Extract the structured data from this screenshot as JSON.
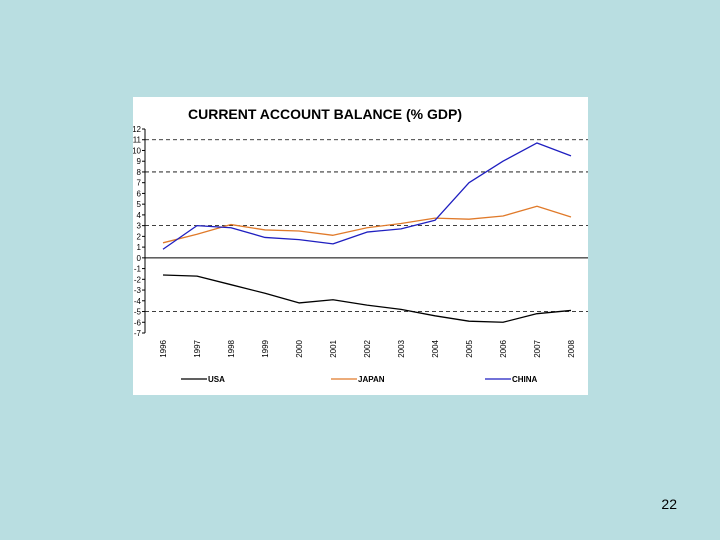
{
  "page": {
    "number": "22"
  },
  "chart_data": {
    "type": "line",
    "title": "CURRENT ACCOUNT BALANCE (% GDP)",
    "xlabel": "",
    "ylabel": "",
    "x": [
      "1996",
      "1997",
      "1998",
      "1999",
      "2000",
      "2001",
      "2002",
      "2003",
      "2004",
      "2005",
      "2006",
      "2007",
      "2008"
    ],
    "ylim": [
      -7,
      12
    ],
    "yticks": [
      "12",
      "11",
      "10",
      "9",
      "8",
      "7",
      "6",
      "5",
      "4",
      "3",
      "2",
      "1",
      "0",
      "-1",
      "-2",
      "-3",
      "-4",
      "-5",
      "-6",
      "-7"
    ],
    "ytick_values": [
      12,
      11,
      10,
      9,
      8,
      7,
      6,
      5,
      4,
      3,
      2,
      1,
      0,
      -1,
      -2,
      -3,
      -4,
      -5,
      -6,
      -7
    ],
    "reference_lines": [
      11,
      8,
      3,
      -5
    ],
    "grid": false,
    "legend_position": "bottom",
    "series": [
      {
        "name": "USA",
        "color": "#000000",
        "values": [
          -1.6,
          -1.7,
          -2.5,
          -3.3,
          -4.2,
          -3.9,
          -4.4,
          -4.8,
          -5.4,
          -5.9,
          -6.0,
          -5.2,
          -4.9
        ]
      },
      {
        "name": "JAPAN",
        "color": "#e07a2a",
        "values": [
          1.4,
          2.2,
          3.1,
          2.6,
          2.5,
          2.1,
          2.8,
          3.2,
          3.7,
          3.6,
          3.9,
          4.8,
          3.8
        ]
      },
      {
        "name": "CHINA",
        "color": "#1f1fc0",
        "values": [
          0.8,
          3.0,
          2.8,
          1.9,
          1.7,
          1.3,
          2.4,
          2.7,
          3.5,
          7.0,
          9.0,
          10.7,
          9.5
        ]
      }
    ]
  }
}
